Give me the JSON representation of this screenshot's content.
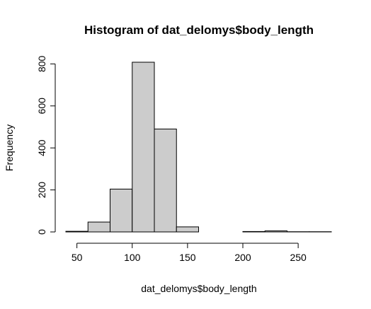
{
  "chart_data": {
    "type": "bar",
    "title": "Histogram of dat_delomys$body_length",
    "xlabel": "dat_delomys$body_length",
    "ylabel": "Frequency",
    "bins": [
      {
        "start": 40,
        "end": 60,
        "count": 3
      },
      {
        "start": 60,
        "end": 80,
        "count": 47
      },
      {
        "start": 80,
        "end": 100,
        "count": 204
      },
      {
        "start": 100,
        "end": 120,
        "count": 808
      },
      {
        "start": 120,
        "end": 140,
        "count": 490
      },
      {
        "start": 140,
        "end": 160,
        "count": 24
      },
      {
        "start": 160,
        "end": 180,
        "count": 0
      },
      {
        "start": 180,
        "end": 200,
        "count": 0
      },
      {
        "start": 200,
        "end": 220,
        "count": 2
      },
      {
        "start": 220,
        "end": 240,
        "count": 5
      },
      {
        "start": 240,
        "end": 260,
        "count": 1
      },
      {
        "start": 260,
        "end": 280,
        "count": 1
      }
    ],
    "x_ticks": [
      50,
      100,
      150,
      200,
      250
    ],
    "y_ticks": [
      0,
      200,
      400,
      600,
      800
    ],
    "xlim": [
      40,
      280
    ],
    "ylim": [
      0,
      808
    ],
    "bar_color": "#cccccc",
    "grid": false,
    "legend": "none"
  }
}
